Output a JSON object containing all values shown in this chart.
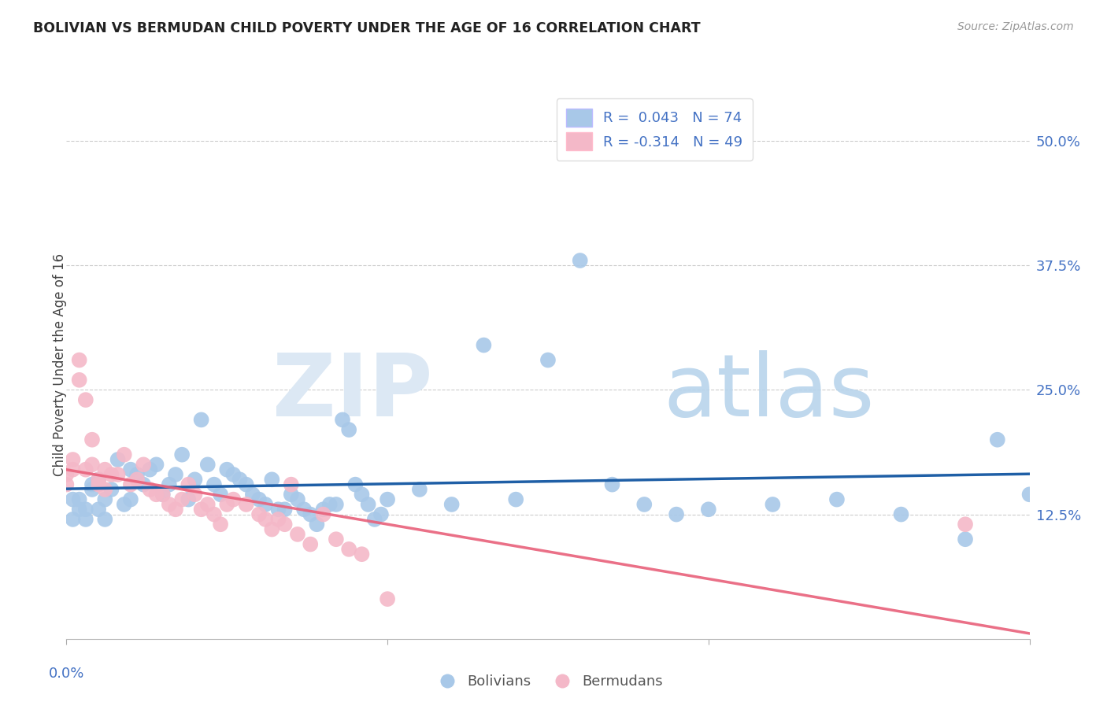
{
  "title": "BOLIVIAN VS BERMUDAN CHILD POVERTY UNDER THE AGE OF 16 CORRELATION CHART",
  "source": "Source: ZipAtlas.com",
  "ylabel": "Child Poverty Under the Age of 16",
  "xlim": [
    0.0,
    0.15
  ],
  "ylim": [
    0.0,
    0.55
  ],
  "yticks": [
    0.125,
    0.25,
    0.375,
    0.5
  ],
  "ytick_labels": [
    "12.5%",
    "25.0%",
    "37.5%",
    "50.0%"
  ],
  "bolivians_R": "0.043",
  "bolivians_N": "74",
  "bermudans_R": "-0.314",
  "bermudans_N": "49",
  "blue_color": "#a8c8e8",
  "pink_color": "#f4b8c8",
  "blue_line_color": "#1f5fa6",
  "pink_line_color": "#e8607a",
  "label_color": "#4472c4",
  "bolivians_x": [
    0.001,
    0.001,
    0.002,
    0.002,
    0.003,
    0.003,
    0.004,
    0.004,
    0.005,
    0.005,
    0.006,
    0.006,
    0.007,
    0.008,
    0.009,
    0.01,
    0.01,
    0.011,
    0.012,
    0.013,
    0.014,
    0.015,
    0.016,
    0.017,
    0.018,
    0.019,
    0.02,
    0.021,
    0.022,
    0.023,
    0.024,
    0.025,
    0.026,
    0.027,
    0.028,
    0.029,
    0.03,
    0.031,
    0.032,
    0.033,
    0.034,
    0.035,
    0.036,
    0.037,
    0.038,
    0.039,
    0.04,
    0.041,
    0.042,
    0.043,
    0.044,
    0.045,
    0.046,
    0.047,
    0.048,
    0.049,
    0.05,
    0.055,
    0.06,
    0.065,
    0.07,
    0.075,
    0.08,
    0.085,
    0.09,
    0.095,
    0.1,
    0.11,
    0.12,
    0.13,
    0.14,
    0.145,
    0.15
  ],
  "bolivians_y": [
    0.14,
    0.12,
    0.13,
    0.14,
    0.13,
    0.12,
    0.15,
    0.155,
    0.16,
    0.13,
    0.12,
    0.14,
    0.15,
    0.18,
    0.135,
    0.17,
    0.14,
    0.165,
    0.155,
    0.17,
    0.175,
    0.145,
    0.155,
    0.165,
    0.185,
    0.14,
    0.16,
    0.22,
    0.175,
    0.155,
    0.145,
    0.17,
    0.165,
    0.16,
    0.155,
    0.145,
    0.14,
    0.135,
    0.16,
    0.13,
    0.13,
    0.145,
    0.14,
    0.13,
    0.125,
    0.115,
    0.13,
    0.135,
    0.135,
    0.22,
    0.21,
    0.155,
    0.145,
    0.135,
    0.12,
    0.125,
    0.14,
    0.15,
    0.135,
    0.295,
    0.14,
    0.28,
    0.38,
    0.155,
    0.135,
    0.125,
    0.13,
    0.135,
    0.14,
    0.125,
    0.1,
    0.2,
    0.145
  ],
  "bermudans_x": [
    0.0,
    0.0,
    0.001,
    0.001,
    0.002,
    0.002,
    0.003,
    0.003,
    0.004,
    0.004,
    0.005,
    0.005,
    0.006,
    0.006,
    0.007,
    0.008,
    0.009,
    0.01,
    0.011,
    0.012,
    0.013,
    0.014,
    0.015,
    0.016,
    0.017,
    0.018,
    0.019,
    0.02,
    0.021,
    0.022,
    0.023,
    0.024,
    0.025,
    0.026,
    0.028,
    0.03,
    0.031,
    0.032,
    0.033,
    0.034,
    0.035,
    0.036,
    0.038,
    0.04,
    0.042,
    0.044,
    0.046,
    0.05,
    0.14
  ],
  "bermudans_y": [
    0.155,
    0.165,
    0.17,
    0.18,
    0.28,
    0.26,
    0.24,
    0.17,
    0.2,
    0.175,
    0.16,
    0.155,
    0.17,
    0.15,
    0.165,
    0.165,
    0.185,
    0.155,
    0.16,
    0.175,
    0.15,
    0.145,
    0.145,
    0.135,
    0.13,
    0.14,
    0.155,
    0.145,
    0.13,
    0.135,
    0.125,
    0.115,
    0.135,
    0.14,
    0.135,
    0.125,
    0.12,
    0.11,
    0.12,
    0.115,
    0.155,
    0.105,
    0.095,
    0.125,
    0.1,
    0.09,
    0.085,
    0.04,
    0.115
  ]
}
